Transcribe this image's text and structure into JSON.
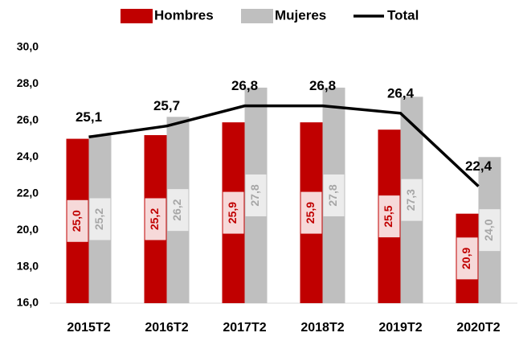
{
  "chart_data": {
    "type": "bar",
    "categories": [
      "2015T2",
      "2016T2",
      "2017T2",
      "2018T2",
      "2019T2",
      "2020T2"
    ],
    "series": [
      {
        "name": "Hombres",
        "color": "#c00000",
        "values": [
          25.0,
          25.2,
          25.9,
          25.9,
          25.5,
          20.9
        ],
        "value_labels": [
          "25,0",
          "25,2",
          "25,9",
          "25,9",
          "25,5",
          "20,9"
        ]
      },
      {
        "name": "Mujeres",
        "color": "#bfbfbf",
        "values": [
          25.2,
          26.2,
          27.8,
          27.8,
          27.3,
          24.0
        ],
        "value_labels": [
          "25,2",
          "26,2",
          "27,8",
          "27,8",
          "27,3",
          "24,0"
        ]
      },
      {
        "name": "Total",
        "type": "line",
        "color": "#000000",
        "values": [
          25.1,
          25.7,
          26.8,
          26.8,
          26.4,
          22.4
        ],
        "value_labels": [
          "25,1",
          "25,7",
          "26,8",
          "26,8",
          "26,4",
          "22,4"
        ]
      }
    ],
    "ylim": [
      16,
      30
    ],
    "yticks": [
      {
        "value": 16,
        "label": "16,0"
      },
      {
        "value": 18,
        "label": "18,0"
      },
      {
        "value": 20,
        "label": "20,0"
      },
      {
        "value": 22,
        "label": "22,0"
      },
      {
        "value": 24,
        "label": "24,0"
      },
      {
        "value": 26,
        "label": "26,0"
      },
      {
        "value": 28,
        "label": "28,0"
      },
      {
        "value": 30,
        "label": "30,0"
      }
    ],
    "legend": "top"
  }
}
